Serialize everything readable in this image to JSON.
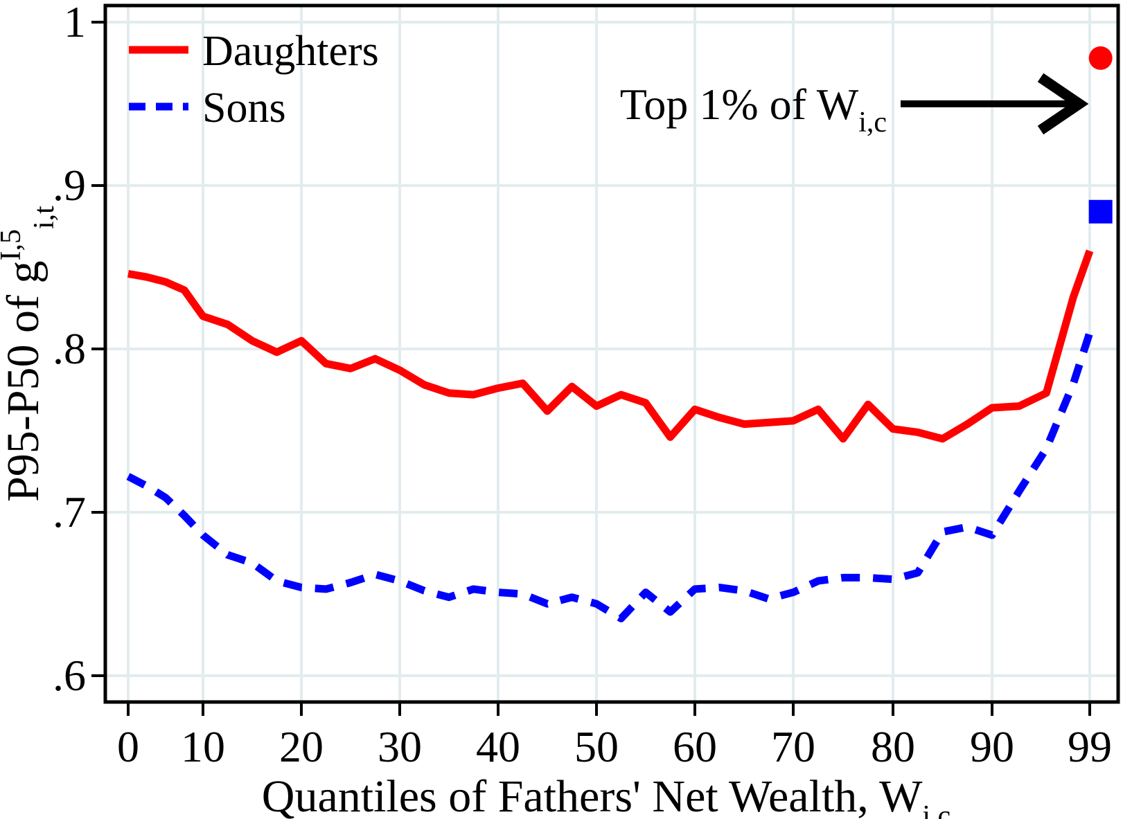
{
  "chart_data": {
    "type": "line",
    "title": "",
    "xlabel": "Quantiles of Fathers' Net Wealth, W",
    "xlabel_sub": "i,c",
    "ylabel": "P95-P50 of g",
    "ylabel_sup": "I,5",
    "ylabel_sub": "i,t",
    "x_ticks": [
      0,
      10,
      20,
      30,
      40,
      50,
      60,
      70,
      80,
      90,
      99
    ],
    "x_tick_labels": [
      "0",
      "10",
      "20",
      "30",
      "40",
      "50",
      "60",
      "70",
      "80",
      "90",
      "99"
    ],
    "y_tick_values": [
      1,
      0.9,
      0.8,
      0.7,
      0.6
    ],
    "y_tick_labels": [
      "1",
      ".9",
      ".8",
      ".7",
      ".6"
    ],
    "xlim": [
      0,
      100
    ],
    "ylim": [
      0.58,
      1.01
    ],
    "grid": true,
    "legend_position": "top-left",
    "annotation": {
      "text": "Top 1% of W",
      "sub": "i,c"
    },
    "x": [
      0,
      2.5,
      5,
      7.5,
      10,
      12.5,
      15,
      17.5,
      20,
      22.5,
      25,
      27.5,
      30,
      32.5,
      35,
      37.5,
      40,
      42.5,
      45,
      47.5,
      50,
      52.5,
      55,
      57.5,
      60,
      62.5,
      65,
      67.5,
      70,
      72.5,
      75,
      77.5,
      80,
      82.5,
      85,
      87.5,
      90,
      92.5,
      95,
      97.5,
      99
    ],
    "series": [
      {
        "name": "Daughters",
        "color": "#ff0000",
        "dash": false,
        "values": [
          0.846,
          0.844,
          0.841,
          0.836,
          0.82,
          0.815,
          0.805,
          0.798,
          0.805,
          0.791,
          0.788,
          0.794,
          0.787,
          0.778,
          0.773,
          0.772,
          0.776,
          0.779,
          0.762,
          0.777,
          0.765,
          0.772,
          0.767,
          0.746,
          0.763,
          0.758,
          0.754,
          0.755,
          0.756,
          0.763,
          0.745,
          0.766,
          0.751,
          0.749,
          0.745,
          0.754,
          0.764,
          0.765,
          0.773,
          0.832,
          0.86
        ]
      },
      {
        "name": "Sons",
        "color": "#0000ff",
        "dash": true,
        "values": [
          0.722,
          0.716,
          0.709,
          0.698,
          0.686,
          0.674,
          0.669,
          0.658,
          0.654,
          0.653,
          0.657,
          0.662,
          0.658,
          0.652,
          0.648,
          0.653,
          0.651,
          0.65,
          0.644,
          0.648,
          0.644,
          0.635,
          0.651,
          0.639,
          0.653,
          0.654,
          0.652,
          0.647,
          0.651,
          0.658,
          0.66,
          0.66,
          0.659,
          0.663,
          0.688,
          0.691,
          0.686,
          0.713,
          0.739,
          0.779,
          0.81
        ]
      }
    ],
    "top1_markers": [
      {
        "series": "Daughters",
        "x": 100,
        "value": 0.978,
        "marker": "circle",
        "color": "#ff0000"
      },
      {
        "series": "Sons",
        "x": 100,
        "value": 0.884,
        "marker": "square",
        "color": "#0000ff"
      }
    ]
  },
  "colors": {
    "background": "#ffffff",
    "grid": "#e2ecef",
    "axis": "#000000",
    "daughters": "#ff0000",
    "sons": "#0000ff"
  }
}
